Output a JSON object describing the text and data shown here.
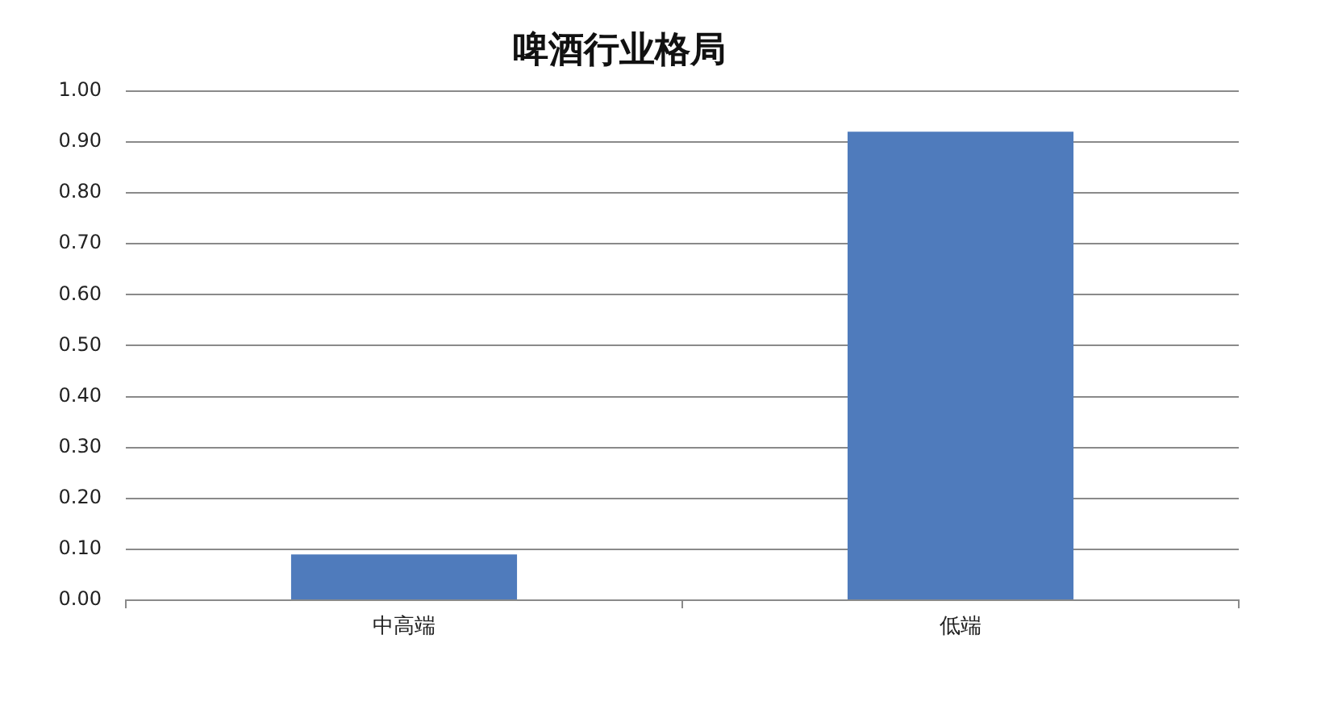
{
  "chart_data": {
    "type": "bar",
    "title": "啤酒行业格局",
    "categories": [
      "中高端",
      "低端"
    ],
    "values": [
      0.09,
      0.92
    ],
    "color": "#4f7bbc",
    "ylim": [
      0,
      1
    ],
    "yticks": [
      {
        "value": 0,
        "label": "0.00"
      },
      {
        "value": 0.1,
        "label": "0.10"
      },
      {
        "value": 0.2,
        "label": "0.20"
      },
      {
        "value": 0.3,
        "label": "0.30"
      },
      {
        "value": 0.4,
        "label": "0.40"
      },
      {
        "value": 0.5,
        "label": "0.50"
      },
      {
        "value": 0.6,
        "label": "0.60"
      },
      {
        "value": 0.7,
        "label": "0.70"
      },
      {
        "value": 0.8,
        "label": "0.80"
      },
      {
        "value": 0.9,
        "label": "0.90"
      },
      {
        "value": 1,
        "label": "1.00"
      }
    ],
    "grid": "y"
  }
}
